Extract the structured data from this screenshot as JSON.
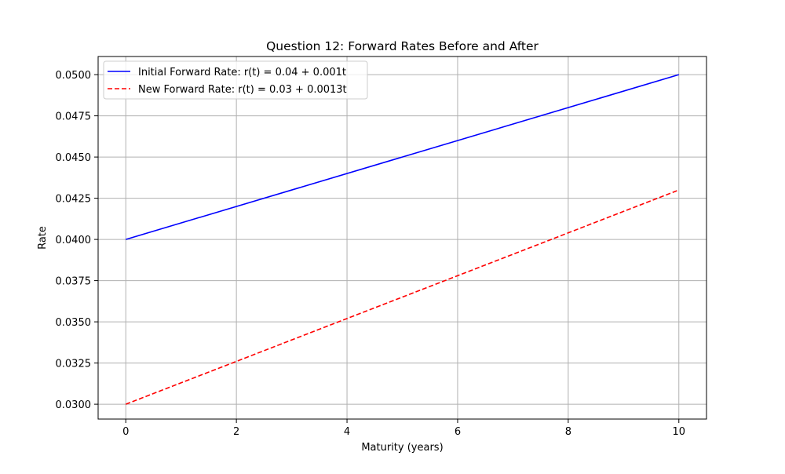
{
  "chart_data": {
    "type": "line",
    "title": "Question 12: Forward Rates Before and After",
    "xlabel": "Maturity (years)",
    "ylabel": "Rate",
    "xlim": [
      -0.5,
      10.5
    ],
    "ylim": [
      0.0291,
      0.0511
    ],
    "xticks": [
      0,
      2,
      4,
      6,
      8,
      10
    ],
    "xtick_labels": [
      "0",
      "2",
      "4",
      "6",
      "8",
      "10"
    ],
    "yticks": [
      0.03,
      0.0325,
      0.035,
      0.0375,
      0.04,
      0.0425,
      0.045,
      0.0475,
      0.05
    ],
    "ytick_labels": [
      "0.0300",
      "0.0325",
      "0.0350",
      "0.0375",
      "0.0400",
      "0.0425",
      "0.0450",
      "0.0475",
      "0.0500"
    ],
    "grid": true,
    "legend_position": "top-left",
    "series": [
      {
        "name": "Initial Forward Rate: r(t) = 0.04 + 0.001t",
        "color": "#0000ff",
        "style": "solid",
        "x": [
          0,
          10
        ],
        "y": [
          0.04,
          0.05
        ]
      },
      {
        "name": "New Forward Rate: r(t) = 0.03 + 0.0013t",
        "color": "#ff0000",
        "style": "dashed",
        "x": [
          0,
          10
        ],
        "y": [
          0.03,
          0.043
        ]
      }
    ]
  }
}
